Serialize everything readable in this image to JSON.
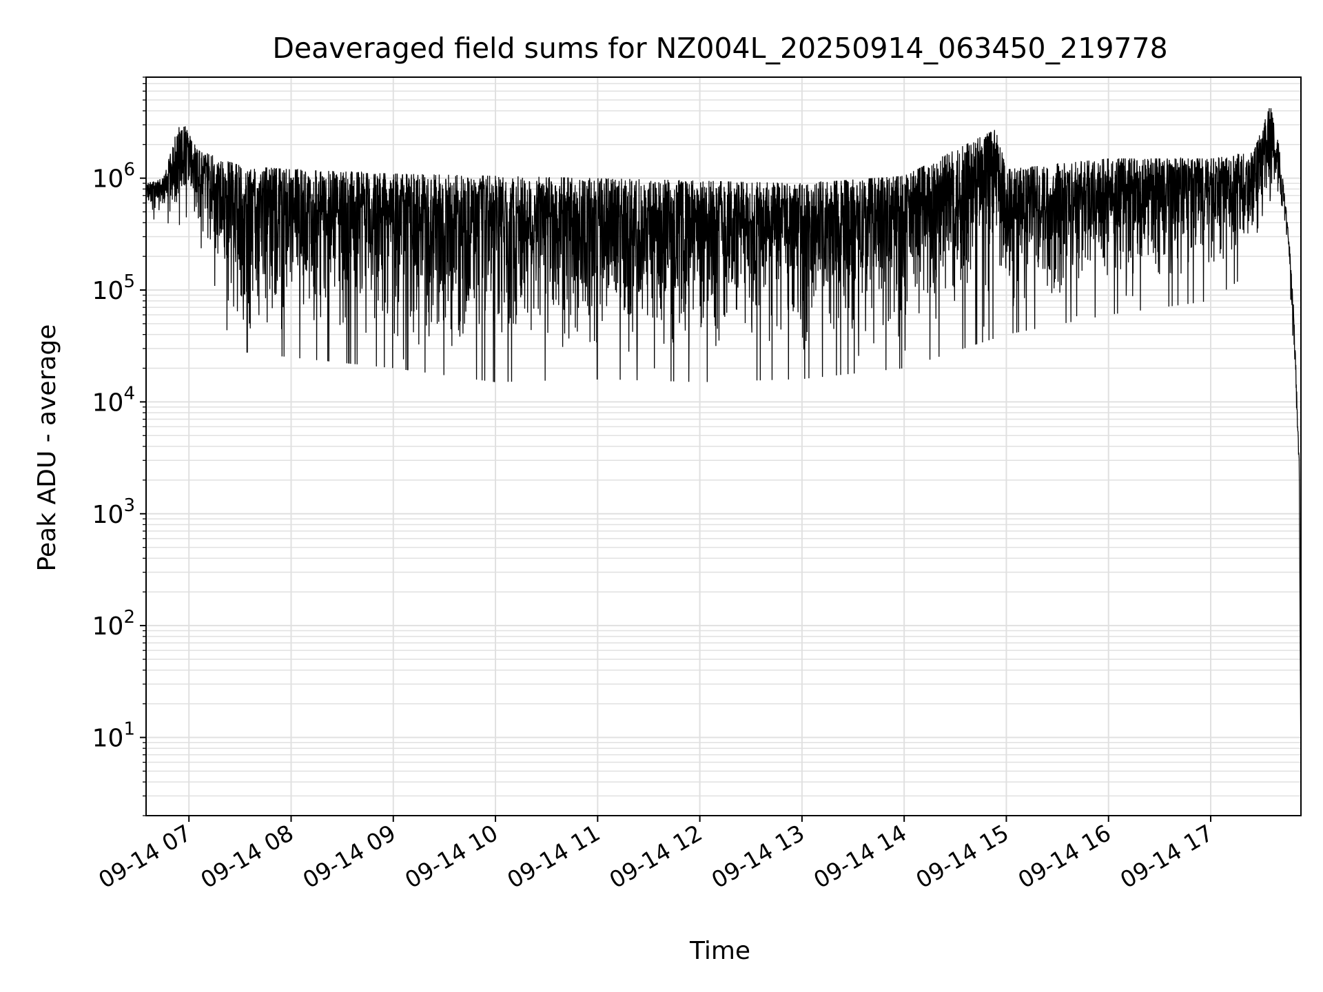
{
  "chart_data": {
    "type": "line",
    "title": "Deaveraged field sums for NZ004L_20250914_063450_219778",
    "xlabel": "Time",
    "ylabel": "Peak ADU - average",
    "yscale": "log",
    "ylim": [
      2,
      8000000
    ],
    "xlim": [
      "2025-09-14T06:34:50",
      "2025-09-14T17:53:00"
    ],
    "grid": true,
    "line_color": "#000000",
    "grid_color": "#e0e0e0",
    "xticks": [
      {
        "t": "2025-09-14T07:00",
        "label": "09-14 07"
      },
      {
        "t": "2025-09-14T08:00",
        "label": "09-14 08"
      },
      {
        "t": "2025-09-14T09:00",
        "label": "09-14 09"
      },
      {
        "t": "2025-09-14T10:00",
        "label": "09-14 10"
      },
      {
        "t": "2025-09-14T11:00",
        "label": "09-14 11"
      },
      {
        "t": "2025-09-14T12:00",
        "label": "09-14 12"
      },
      {
        "t": "2025-09-14T13:00",
        "label": "09-14 13"
      },
      {
        "t": "2025-09-14T14:00",
        "label": "09-14 14"
      },
      {
        "t": "2025-09-14T15:00",
        "label": "09-14 15"
      },
      {
        "t": "2025-09-14T16:00",
        "label": "09-14 16"
      },
      {
        "t": "2025-09-14T17:00",
        "label": "09-14 17"
      }
    ],
    "yticks": [
      {
        "value": 10,
        "base": "10",
        "exp": "1"
      },
      {
        "value": 100,
        "base": "10",
        "exp": "2"
      },
      {
        "value": 1000,
        "base": "10",
        "exp": "3"
      },
      {
        "value": 10000,
        "base": "10",
        "exp": "4"
      },
      {
        "value": 100000,
        "base": "10",
        "exp": "5"
      },
      {
        "value": 1000000,
        "base": "10",
        "exp": "6"
      }
    ],
    "series": [
      {
        "upper_envelope": {
          "t": [
            "2025-09-14T06:35",
            "2025-09-14T06:45",
            "2025-09-14T06:55",
            "2025-09-14T07:05",
            "2025-09-14T07:30",
            "2025-09-14T08:00",
            "2025-09-14T09:00",
            "2025-09-14T10:00",
            "2025-09-14T11:00",
            "2025-09-14T12:00",
            "2025-09-14T13:00",
            "2025-09-14T14:00",
            "2025-09-14T14:55",
            "2025-09-14T15:00",
            "2025-09-14T16:00",
            "2025-09-14T17:00",
            "2025-09-14T17:25",
            "2025-09-14T17:35",
            "2025-09-14T17:40",
            "2025-09-14T17:43",
            "2025-09-14T17:46",
            "2025-09-14T17:49",
            "2025-09-14T17:51",
            "2025-09-14T17:52",
            "2025-09-14T17:53"
          ],
          "y": [
            900000,
            1000000,
            3500000,
            1800000,
            1300000,
            1200000,
            1100000,
            1050000,
            1000000,
            950000,
            900000,
            1050000,
            2800000,
            1200000,
            1500000,
            1500000,
            1700000,
            4500000,
            2000000,
            800000,
            300000,
            60000,
            8000,
            3000,
            4
          ]
        },
        "lower_envelope": {
          "t": [
            "2025-09-14T06:35",
            "2025-09-14T06:45",
            "2025-09-14T06:55",
            "2025-09-14T07:05",
            "2025-09-14T07:20",
            "2025-09-14T07:30",
            "2025-09-14T08:00",
            "2025-09-14T09:00",
            "2025-09-14T10:00",
            "2025-09-14T11:00",
            "2025-09-14T12:00",
            "2025-09-14T13:00",
            "2025-09-14T14:00",
            "2025-09-14T15:00",
            "2025-09-14T16:00",
            "2025-09-14T17:00",
            "2025-09-14T17:25",
            "2025-09-14T17:35",
            "2025-09-14T17:40",
            "2025-09-14T17:43",
            "2025-09-14T17:46",
            "2025-09-14T17:49",
            "2025-09-14T17:51",
            "2025-09-14T17:52",
            "2025-09-14T17:53"
          ],
          "y": [
            450000,
            400000,
            380000,
            200000,
            50000,
            28000,
            25000,
            20000,
            15000,
            16000,
            15000,
            16000,
            20000,
            40000,
            60000,
            80000,
            150000,
            300000,
            500000,
            300000,
            80000,
            20000,
            3000,
            2500,
            4
          ]
        }
      }
    ]
  }
}
